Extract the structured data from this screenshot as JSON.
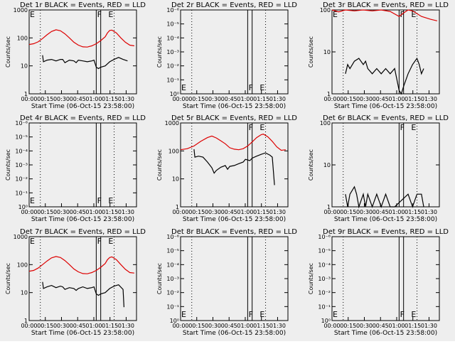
{
  "charts": [
    {
      "title": "Det 1r BLACK = Events, RED = LLD",
      "ylabel": "Counts/sec",
      "xlabel": "Start Time (06-Oct-15 23:58:00)",
      "yticks": [
        "1",
        "10",
        "100",
        "1000"
      ],
      "ylog": [
        0,
        3
      ],
      "has_data": true,
      "red": [
        [
          0,
          58
        ],
        [
          0.1,
          62
        ],
        [
          0.2,
          72
        ],
        [
          0.3,
          95
        ],
        [
          0.4,
          130
        ],
        [
          0.5,
          170
        ],
        [
          0.6,
          195
        ],
        [
          0.7,
          180
        ],
        [
          0.8,
          140
        ],
        [
          0.9,
          100
        ],
        [
          1.0,
          70
        ],
        [
          1.1,
          55
        ],
        [
          1.2,
          48
        ],
        [
          1.3,
          47
        ],
        [
          1.4,
          52
        ],
        [
          1.5,
          62
        ],
        [
          1.6,
          80
        ],
        [
          1.7,
          110
        ],
        [
          1.75,
          150
        ],
        [
          1.8,
          185
        ],
        [
          1.85,
          190
        ],
        [
          1.95,
          150
        ],
        [
          2.05,
          100
        ],
        [
          2.15,
          70
        ],
        [
          2.25,
          55
        ],
        [
          2.35,
          52
        ]
      ],
      "black": [
        [
          0.3,
          24
        ],
        [
          0.32,
          14
        ],
        [
          0.4,
          16
        ],
        [
          0.5,
          17
        ],
        [
          0.6,
          15
        ],
        [
          0.7,
          17
        ],
        [
          0.75,
          17
        ],
        [
          0.8,
          13
        ],
        [
          0.9,
          16
        ],
        [
          1.0,
          15
        ],
        [
          1.05,
          13
        ],
        [
          1.1,
          16
        ],
        [
          1.2,
          15
        ],
        [
          1.3,
          14
        ],
        [
          1.4,
          15
        ],
        [
          1.45,
          16
        ],
        [
          1.5,
          9
        ],
        [
          1.55,
          8
        ],
        [
          1.6,
          9
        ],
        [
          1.7,
          10
        ],
        [
          1.8,
          14
        ],
        [
          1.9,
          17
        ],
        [
          2.0,
          20
        ],
        [
          2.1,
          17
        ],
        [
          2.2,
          15
        ]
      ]
    },
    {
      "title": "Det 2r BLACK = Events, RED = LLD",
      "ylabel": "Counts/sec",
      "xlabel": "Start Time (06-Oct-15 23:58:00)",
      "yticks": [
        "10⁰",
        "10⁻¹",
        "10⁻²",
        "10⁻³",
        "10⁻⁴",
        "10⁻⁵",
        "10⁻⁶"
      ],
      "ylog": [
        0,
        6
      ],
      "has_data": false,
      "red": [],
      "black": []
    },
    {
      "title": "Det 3r BLACK = Events, RED = LLD",
      "ylabel": "Counts/sec",
      "xlabel": "Start Time (06-Oct-15 23:58:00)",
      "yticks": [
        "1",
        "10",
        "100"
      ],
      "ylog": [
        0,
        2
      ],
      "has_data": true,
      "red": [
        [
          0,
          100
        ],
        [
          0.15,
          90
        ],
        [
          0.3,
          100
        ],
        [
          0.5,
          95
        ],
        [
          0.7,
          100
        ],
        [
          0.9,
          95
        ],
        [
          1.1,
          100
        ],
        [
          1.3,
          92
        ],
        [
          1.5,
          70
        ],
        [
          1.6,
          85
        ],
        [
          1.7,
          100
        ],
        [
          1.8,
          95
        ],
        [
          2.0,
          70
        ],
        [
          2.2,
          60
        ],
        [
          2.35,
          55
        ]
      ],
      "black": [
        [
          0.3,
          3
        ],
        [
          0.35,
          5
        ],
        [
          0.4,
          4
        ],
        [
          0.5,
          6
        ],
        [
          0.6,
          7
        ],
        [
          0.7,
          5
        ],
        [
          0.75,
          6
        ],
        [
          0.8,
          4
        ],
        [
          0.9,
          3
        ],
        [
          1.0,
          4
        ],
        [
          1.1,
          3
        ],
        [
          1.2,
          4
        ],
        [
          1.3,
          3
        ],
        [
          1.4,
          4
        ],
        [
          1.5,
          1.2
        ],
        [
          1.55,
          1
        ],
        [
          1.6,
          1.5
        ],
        [
          1.7,
          3
        ],
        [
          1.8,
          5
        ],
        [
          1.9,
          7
        ],
        [
          1.95,
          5
        ],
        [
          2.0,
          3
        ],
        [
          2.05,
          4
        ]
      ]
    },
    {
      "title": "Det 4r BLACK = Events, RED = LLD",
      "ylabel": "Counts/sec",
      "xlabel": "Start Time (06-Oct-15 23:58:00)",
      "yticks": [
        "10⁰",
        "10⁻¹",
        "10⁻²",
        "10⁻³",
        "10⁻⁴",
        "10⁻⁵",
        "10⁻⁶"
      ],
      "ylog": [
        0,
        6
      ],
      "has_data": false,
      "red": [],
      "black": []
    },
    {
      "title": "Det 5r BLACK = Events, RED = LLD",
      "ylabel": "Counts/sec",
      "xlabel": "Start Time (06-Oct-15 23:58:00)",
      "yticks": [
        "1",
        "10",
        "100",
        "1000"
      ],
      "ylog": [
        0,
        3
      ],
      "has_data": true,
      "red": [
        [
          0,
          110
        ],
        [
          0.15,
          120
        ],
        [
          0.3,
          150
        ],
        [
          0.45,
          220
        ],
        [
          0.6,
          300
        ],
        [
          0.7,
          340
        ],
        [
          0.8,
          290
        ],
        [
          0.9,
          230
        ],
        [
          1.0,
          180
        ],
        [
          1.1,
          130
        ],
        [
          1.2,
          115
        ],
        [
          1.3,
          110
        ],
        [
          1.4,
          120
        ],
        [
          1.5,
          150
        ],
        [
          1.6,
          210
        ],
        [
          1.7,
          300
        ],
        [
          1.8,
          380
        ],
        [
          1.85,
          400
        ],
        [
          1.95,
          320
        ],
        [
          2.05,
          220
        ],
        [
          2.15,
          140
        ],
        [
          2.25,
          105
        ],
        [
          2.35,
          110
        ]
      ],
      "black": [
        [
          0.3,
          115
        ],
        [
          0.32,
          60
        ],
        [
          0.4,
          65
        ],
        [
          0.5,
          60
        ],
        [
          0.6,
          40
        ],
        [
          0.7,
          25
        ],
        [
          0.75,
          16
        ],
        [
          0.8,
          20
        ],
        [
          0.9,
          26
        ],
        [
          1.0,
          30
        ],
        [
          1.05,
          22
        ],
        [
          1.1,
          28
        ],
        [
          1.2,
          30
        ],
        [
          1.3,
          35
        ],
        [
          1.4,
          40
        ],
        [
          1.45,
          50
        ],
        [
          1.55,
          45
        ],
        [
          1.6,
          55
        ],
        [
          1.7,
          65
        ],
        [
          1.8,
          75
        ],
        [
          1.9,
          85
        ],
        [
          2.0,
          70
        ],
        [
          2.05,
          60
        ],
        [
          2.1,
          6
        ]
      ]
    },
    {
      "title": "Det 6r BLACK = Events, RED = LLD",
      "ylabel": "Counts/sec",
      "xlabel": "Start Time (06-Oct-15 23:58:00)",
      "yticks": [
        "1",
        "10",
        "100"
      ],
      "ylog": [
        0,
        2
      ],
      "has_data": true,
      "red": [],
      "black": [
        [
          0.3,
          2
        ],
        [
          0.35,
          1
        ],
        [
          0.4,
          2
        ],
        [
          0.5,
          3
        ],
        [
          0.55,
          2
        ],
        [
          0.6,
          1
        ],
        [
          0.7,
          2
        ],
        [
          0.75,
          1
        ],
        [
          0.8,
          2
        ],
        [
          0.9,
          1
        ],
        [
          1.0,
          2
        ],
        [
          1.1,
          1
        ],
        [
          1.2,
          2
        ],
        [
          1.3,
          1
        ],
        [
          1.4,
          1
        ],
        [
          1.7,
          2
        ],
        [
          1.8,
          1
        ],
        [
          1.9,
          2
        ],
        [
          2.0,
          2
        ],
        [
          2.05,
          1
        ]
      ]
    },
    {
      "title": "Det 7r BLACK = Events, RED = LLD",
      "ylabel": "Counts/sec",
      "xlabel": "Start Time (06-Oct-15 23:58:00)",
      "yticks": [
        "1",
        "10",
        "100",
        "1000"
      ],
      "ylog": [
        0,
        3
      ],
      "has_data": true,
      "red": [
        [
          0,
          58
        ],
        [
          0.1,
          62
        ],
        [
          0.2,
          75
        ],
        [
          0.3,
          100
        ],
        [
          0.4,
          135
        ],
        [
          0.5,
          175
        ],
        [
          0.6,
          195
        ],
        [
          0.7,
          180
        ],
        [
          0.8,
          140
        ],
        [
          0.9,
          100
        ],
        [
          1.0,
          70
        ],
        [
          1.1,
          55
        ],
        [
          1.2,
          48
        ],
        [
          1.3,
          47
        ],
        [
          1.4,
          52
        ],
        [
          1.5,
          62
        ],
        [
          1.6,
          80
        ],
        [
          1.7,
          110
        ],
        [
          1.75,
          150
        ],
        [
          1.8,
          180
        ],
        [
          1.85,
          190
        ],
        [
          1.95,
          150
        ],
        [
          2.05,
          100
        ],
        [
          2.15,
          68
        ],
        [
          2.25,
          52
        ],
        [
          2.35,
          50
        ]
      ],
      "black": [
        [
          0.3,
          24
        ],
        [
          0.32,
          14
        ],
        [
          0.4,
          16
        ],
        [
          0.5,
          18
        ],
        [
          0.6,
          15
        ],
        [
          0.7,
          17
        ],
        [
          0.75,
          16
        ],
        [
          0.8,
          13
        ],
        [
          0.9,
          15
        ],
        [
          1.0,
          14
        ],
        [
          1.05,
          12
        ],
        [
          1.1,
          14
        ],
        [
          1.2,
          16
        ],
        [
          1.3,
          14
        ],
        [
          1.4,
          15
        ],
        [
          1.45,
          16
        ],
        [
          1.5,
          9
        ],
        [
          1.55,
          8
        ],
        [
          1.6,
          9
        ],
        [
          1.7,
          10
        ],
        [
          1.8,
          14
        ],
        [
          1.9,
          17
        ],
        [
          2.0,
          19
        ],
        [
          2.1,
          13
        ],
        [
          2.12,
          3
        ]
      ]
    },
    {
      "title": "Det 8r BLACK = Events, RED = LLD",
      "ylabel": "Counts/sec",
      "xlabel": "Start Time (06-Oct-15 23:58:00)",
      "yticks": [
        "10⁰",
        "10⁻¹",
        "10⁻²",
        "10⁻³",
        "10⁻⁴",
        "10⁻⁵",
        "10⁻⁶"
      ],
      "ylog": [
        0,
        6
      ],
      "has_data": false,
      "red": [],
      "black": []
    },
    {
      "title": "Det 9r BLACK = Events, RED = LLD",
      "ylabel": "Counts/sec",
      "xlabel": "Start Time (06-Oct-15 23:58:00)",
      "yticks": [
        "10⁰",
        "10⁻¹",
        "10⁻²",
        "10⁻³",
        "10⁻⁴",
        "10⁻⁵",
        "10⁻⁶"
      ],
      "ylog": [
        0,
        6
      ],
      "has_data": false,
      "red": [],
      "black": []
    }
  ],
  "xticks": [
    "00:00",
    "00:15",
    "00:30",
    "00:45",
    "01:00",
    "01:15",
    "01:30"
  ],
  "markers": {
    "F": "F",
    "E": "E"
  },
  "colors": {
    "red": "#dd0000",
    "black": "#000000",
    "bg": "#eeeeee"
  },
  "chart_data": {
    "type": "line",
    "xunit": "hours after 23:58:00",
    "series_names": [
      "BLACK = Events",
      "RED = LLD"
    ]
  }
}
